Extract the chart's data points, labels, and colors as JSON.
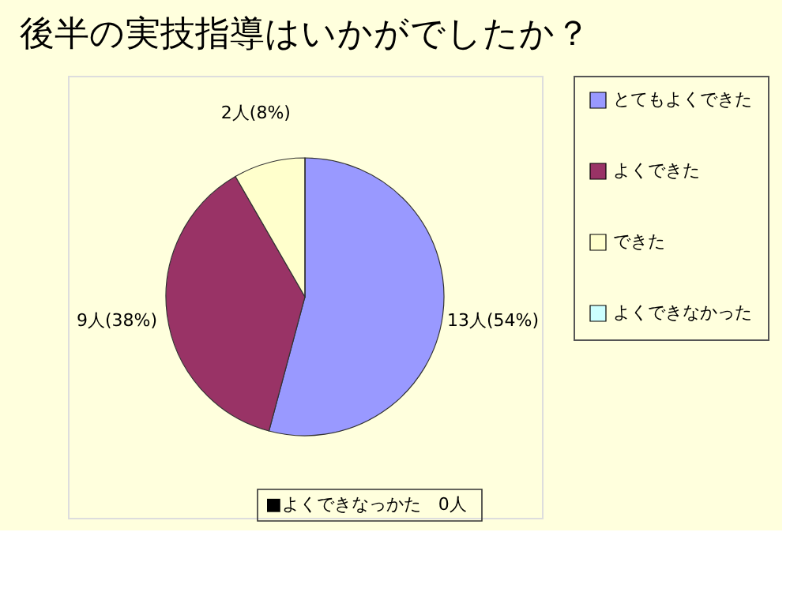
{
  "chart_data": {
    "type": "pie",
    "title": "後半の実技指導はいかがでしたか？",
    "categories": [
      "とてもよくできた",
      "よくできた",
      "できた",
      "よくできなかった"
    ],
    "values": [
      13,
      9,
      2,
      0
    ],
    "value_labels": [
      "13人(54%)",
      "9人(38%)",
      "2人(8%)",
      null
    ],
    "colors": [
      "#9999ff",
      "#993366",
      "#ffffcc",
      "#ccffff"
    ],
    "legend": "right",
    "annotations": [
      "■よくできなっかた　0人"
    ]
  }
}
